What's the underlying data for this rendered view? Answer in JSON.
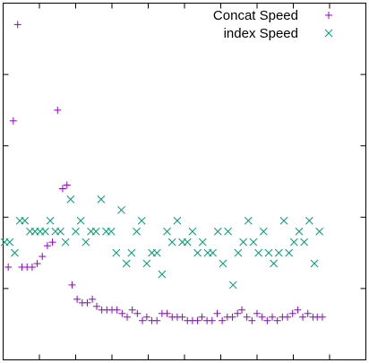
{
  "chart_data": {
    "type": "scatter",
    "title": "",
    "xlabel": "",
    "ylabel": "",
    "xlim": [
      0,
      100
    ],
    "ylim": [
      0,
      1
    ],
    "x_ticks": [
      0,
      10,
      20,
      30,
      40,
      50,
      60,
      70,
      80,
      90,
      100
    ],
    "y_ticks": [
      0,
      0.2,
      0.4,
      0.6,
      0.8,
      1
    ],
    "grid": false,
    "tick_labels_shown": false,
    "legend_position": "top-right",
    "series": [
      {
        "name": "Concat Speed",
        "marker": "plus",
        "color": "#9400d3",
        "x": [
          1.4,
          2.8,
          4.0,
          5.2,
          6.6,
          8.0,
          9.4,
          10.8,
          12.2,
          13.6,
          15.0,
          16.4,
          17.6,
          19.0,
          20.4,
          21.8,
          23.2,
          24.6,
          25.8,
          27.2,
          28.6,
          30.0,
          31.4,
          32.8,
          34.2,
          35.6,
          37.0,
          38.4,
          39.6,
          41.0,
          42.4,
          43.8,
          45.2,
          46.6,
          48.0,
          49.4,
          50.8,
          52.2,
          53.6,
          54.8,
          56.2,
          57.6,
          59.0,
          60.4,
          61.8,
          63.2,
          64.6,
          65.8,
          67.2,
          68.6,
          70.0,
          71.4,
          72.8,
          74.2,
          75.6,
          77.0,
          78.4,
          79.8,
          81.2,
          82.6,
          84.0,
          85.4,
          86.6,
          88.0
        ],
        "y": [
          0.26,
          0.67,
          0.94,
          0.26,
          0.26,
          0.26,
          0.27,
          0.29,
          0.32,
          0.33,
          0.7,
          0.48,
          0.49,
          0.21,
          0.17,
          0.16,
          0.16,
          0.17,
          0.15,
          0.14,
          0.14,
          0.14,
          0.14,
          0.13,
          0.12,
          0.14,
          0.13,
          0.11,
          0.12,
          0.11,
          0.11,
          0.13,
          0.13,
          0.12,
          0.12,
          0.12,
          0.11,
          0.11,
          0.11,
          0.12,
          0.11,
          0.11,
          0.13,
          0.11,
          0.12,
          0.12,
          0.13,
          0.14,
          0.12,
          0.11,
          0.13,
          0.12,
          0.11,
          0.12,
          0.11,
          0.12,
          0.12,
          0.13,
          0.14,
          0.12,
          0.13,
          0.12,
          0.12,
          0.12
        ]
      },
      {
        "name": "index Speed",
        "marker": "cross",
        "color": "#009e73",
        "x": [
          0.4,
          1.8,
          3.2,
          4.6,
          6.0,
          7.4,
          8.8,
          10.2,
          11.6,
          13.0,
          14.4,
          15.8,
          17.2,
          18.6,
          20.0,
          21.4,
          22.8,
          24.2,
          25.6,
          27.0,
          28.4,
          29.8,
          31.2,
          32.6,
          34.0,
          35.4,
          36.8,
          38.2,
          39.6,
          41.0,
          42.4,
          43.8,
          45.2,
          46.6,
          48.0,
          49.4,
          50.8,
          52.2,
          53.6,
          55.0,
          56.4,
          57.8,
          59.2,
          60.6,
          62.0,
          63.4,
          64.8,
          66.2,
          67.6,
          69.0,
          70.4,
          71.8,
          73.2,
          74.6,
          76.0,
          77.4,
          78.8,
          80.2,
          81.6,
          83.0,
          84.4,
          85.8,
          87.2
        ],
        "y": [
          0.33,
          0.33,
          0.3,
          0.39,
          0.39,
          0.36,
          0.36,
          0.36,
          0.36,
          0.39,
          0.36,
          0.36,
          0.33,
          0.45,
          0.36,
          0.39,
          0.33,
          0.36,
          0.36,
          0.45,
          0.36,
          0.36,
          0.3,
          0.42,
          0.27,
          0.3,
          0.36,
          0.39,
          0.27,
          0.3,
          0.3,
          0.24,
          0.36,
          0.33,
          0.39,
          0.33,
          0.33,
          0.36,
          0.3,
          0.33,
          0.3,
          0.3,
          0.36,
          0.27,
          0.36,
          0.21,
          0.3,
          0.33,
          0.39,
          0.33,
          0.3,
          0.36,
          0.3,
          0.27,
          0.3,
          0.39,
          0.3,
          0.33,
          0.36,
          0.33,
          0.39,
          0.27,
          0.36
        ]
      }
    ]
  }
}
